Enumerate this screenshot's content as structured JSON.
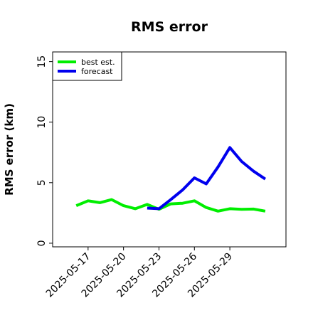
{
  "chart_data": {
    "type": "line",
    "title": "RMS error",
    "xlabel": "",
    "ylabel": "RMS error (km)",
    "x_ticks": [
      "2025-05-17",
      "2025-05-20",
      "2025-05-23",
      "2025-05-26",
      "2025-05-29"
    ],
    "y_ticks": [
      0,
      5,
      10,
      15
    ],
    "ylim": [
      -0.3,
      15.8
    ],
    "xlim": [
      "2025-05-14T00:00",
      "2025-06-02T18:00"
    ],
    "legend_position": "top-left",
    "grid": false,
    "series": [
      {
        "name": "best est.",
        "color": "#00ee00",
        "x": [
          "2025-05-16",
          "2025-05-17",
          "2025-05-18",
          "2025-05-19",
          "2025-05-20",
          "2025-05-21",
          "2025-05-22",
          "2025-05-23",
          "2025-05-24",
          "2025-05-25",
          "2025-05-26",
          "2025-05-27",
          "2025-05-28",
          "2025-05-29",
          "2025-05-30",
          "2025-05-31",
          "2025-06-01"
        ],
        "values": [
          3.1,
          3.5,
          3.35,
          3.6,
          3.1,
          2.85,
          3.2,
          2.8,
          3.25,
          3.3,
          3.5,
          2.95,
          2.65,
          2.85,
          2.8,
          2.82,
          2.65
        ]
      },
      {
        "name": "forecast",
        "color": "#0000ee",
        "x": [
          "2025-05-22",
          "2025-05-23",
          "2025-05-24",
          "2025-05-25",
          "2025-05-26",
          "2025-05-27",
          "2025-05-28",
          "2025-05-29",
          "2025-05-30",
          "2025-05-31",
          "2025-06-01"
        ],
        "values": [
          2.9,
          2.85,
          3.6,
          4.4,
          5.4,
          4.9,
          6.3,
          7.9,
          6.75,
          5.95,
          5.3
        ]
      }
    ]
  }
}
